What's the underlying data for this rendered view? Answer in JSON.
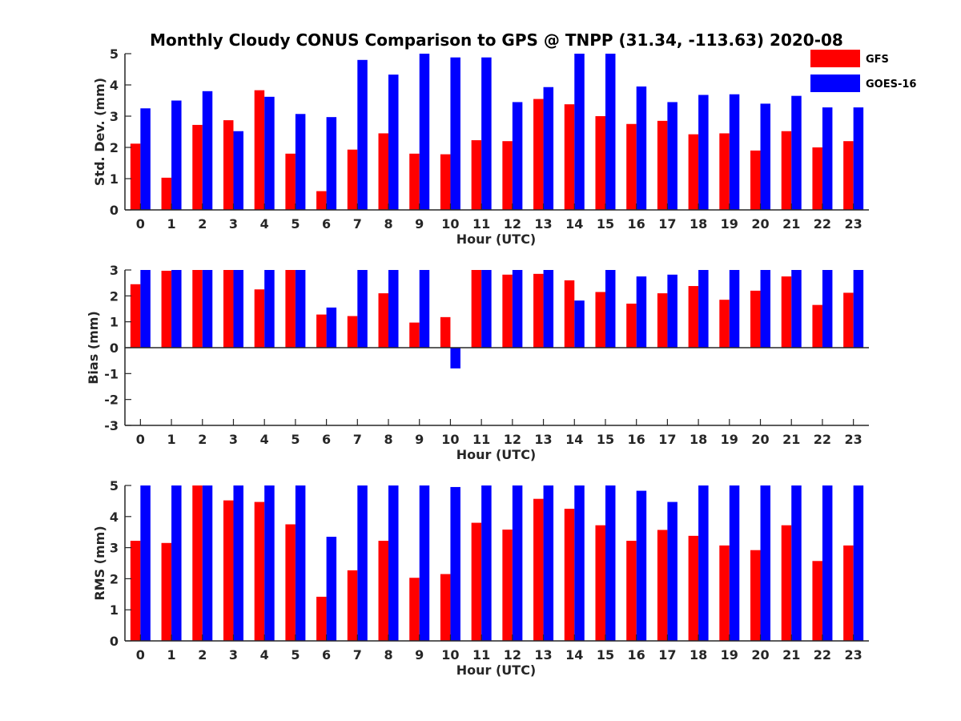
{
  "chart_data": [
    {
      "type": "bar",
      "title": "Monthly Cloudy CONUS Comparison to GPS @ TNPP (31.34, -113.63) 2020-08",
      "xlabel": "Hour (UTC)",
      "ylabel": "Std. Dev. (mm)",
      "ylim": [
        0,
        5
      ],
      "yticks": [
        0,
        1,
        2,
        3,
        4,
        5
      ],
      "categories": [
        "0",
        "1",
        "2",
        "3",
        "4",
        "5",
        "6",
        "7",
        "8",
        "9",
        "10",
        "11",
        "12",
        "13",
        "14",
        "15",
        "16",
        "17",
        "18",
        "19",
        "20",
        "21",
        "22",
        "23"
      ],
      "legend": "top-right",
      "series": [
        {
          "name": "GFS",
          "color": "#ff0000",
          "values": [
            2.12,
            1.03,
            2.72,
            2.87,
            3.83,
            1.8,
            0.6,
            1.93,
            2.45,
            1.8,
            1.78,
            2.23,
            2.2,
            3.55,
            3.38,
            3.0,
            2.75,
            2.85,
            2.42,
            2.45,
            1.9,
            2.52,
            2.0,
            2.2
          ]
        },
        {
          "name": "GOES-16",
          "color": "#0000ff",
          "values": [
            3.25,
            3.5,
            3.8,
            2.52,
            3.62,
            3.07,
            2.97,
            4.8,
            4.33,
            5.0,
            4.88,
            4.88,
            3.45,
            3.93,
            5.0,
            5.0,
            3.95,
            3.45,
            3.68,
            3.7,
            3.4,
            3.65,
            3.28,
            3.28
          ]
        }
      ]
    },
    {
      "type": "bar",
      "xlabel": "Hour (UTC)",
      "ylabel": "Bias (mm)",
      "ylim": [
        -3,
        3
      ],
      "yticks": [
        -3,
        -2,
        -1,
        0,
        1,
        2,
        3
      ],
      "categories": [
        "0",
        "1",
        "2",
        "3",
        "4",
        "5",
        "6",
        "7",
        "8",
        "9",
        "10",
        "11",
        "12",
        "13",
        "14",
        "15",
        "16",
        "17",
        "18",
        "19",
        "20",
        "21",
        "22",
        "23"
      ],
      "series": [
        {
          "color": "#ff0000",
          "values": [
            2.45,
            2.97,
            3.0,
            3.0,
            2.25,
            3.0,
            1.28,
            1.22,
            2.1,
            0.97,
            1.18,
            3.0,
            2.82,
            2.85,
            2.6,
            2.15,
            1.7,
            2.1,
            2.38,
            1.85,
            2.2,
            2.75,
            1.65,
            2.12
          ]
        },
        {
          "color": "#0000ff",
          "values": [
            3.0,
            3.0,
            3.0,
            3.0,
            3.0,
            3.0,
            1.55,
            3.0,
            3.0,
            3.0,
            -0.8,
            3.0,
            3.0,
            3.0,
            1.82,
            3.0,
            2.75,
            2.82,
            3.0,
            3.0,
            3.0,
            3.0,
            3.0,
            3.0
          ]
        }
      ]
    },
    {
      "type": "bar",
      "xlabel": "Hour (UTC)",
      "ylabel": "RMS (mm)",
      "ylim": [
        0,
        5
      ],
      "yticks": [
        0,
        1,
        2,
        3,
        4,
        5
      ],
      "categories": [
        "0",
        "1",
        "2",
        "3",
        "4",
        "5",
        "6",
        "7",
        "8",
        "9",
        "10",
        "11",
        "12",
        "13",
        "14",
        "15",
        "16",
        "17",
        "18",
        "19",
        "20",
        "21",
        "22",
        "23"
      ],
      "series": [
        {
          "color": "#ff0000",
          "values": [
            3.22,
            3.15,
            5.0,
            4.52,
            4.47,
            3.75,
            1.42,
            2.27,
            3.22,
            2.03,
            2.15,
            3.8,
            3.58,
            4.57,
            4.25,
            3.72,
            3.22,
            3.57,
            3.38,
            3.07,
            2.92,
            3.72,
            2.57,
            3.07
          ]
        },
        {
          "color": "#0000ff",
          "values": [
            5.0,
            5.0,
            5.0,
            5.0,
            5.0,
            5.0,
            3.35,
            5.0,
            5.0,
            5.0,
            4.95,
            5.0,
            5.0,
            5.0,
            5.0,
            5.0,
            4.83,
            4.47,
            5.0,
            5.0,
            5.0,
            5.0,
            5.0,
            5.0
          ]
        }
      ]
    }
  ]
}
